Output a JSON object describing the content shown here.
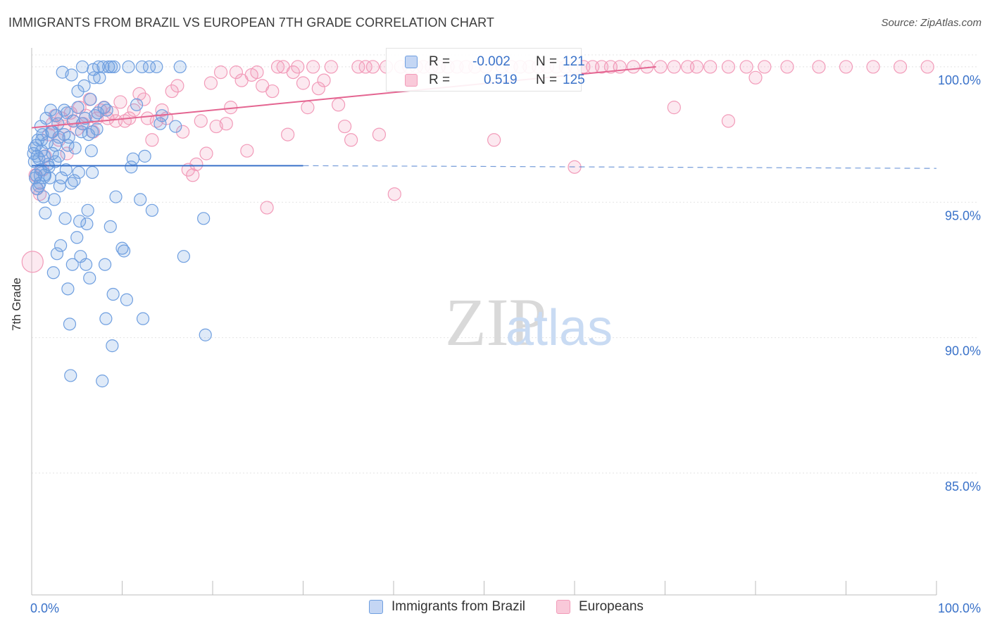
{
  "title": "IMMIGRANTS FROM BRAZIL VS EUROPEAN 7TH GRADE CORRELATION CHART",
  "source": "Source: ZipAtlas.com",
  "watermark": {
    "zip": "ZIP",
    "atlas": "atlas"
  },
  "legend_top": {
    "row1": {
      "r_label": "R =",
      "r_value": "-0.002",
      "n_label": "N =",
      "n_value": "121"
    },
    "row2": {
      "r_label": "R =",
      "r_value": "0.519",
      "n_label": "N =",
      "n_value": "125"
    }
  },
  "legend_bottom": {
    "series1": "Immigrants from Brazil",
    "series2": "Europeans"
  },
  "colors": {
    "blue": "#6f9fe0",
    "blue_line": "#3a72c9",
    "pink": "#f29bb9",
    "pink_line": "#e46591",
    "axis_text": "#3a72c9"
  },
  "chart_data": {
    "type": "scatter",
    "title": "IMMIGRANTS FROM BRAZIL VS EUROPEAN 7TH GRADE CORRELATION CHART",
    "xlabel": "",
    "ylabel": "7th Grade",
    "xlim": [
      0,
      100
    ],
    "ylim": [
      80.5,
      100.7
    ],
    "x_tick_labels": [
      "0.0%",
      "100.0%"
    ],
    "y_ticks": [
      85,
      90,
      95,
      100
    ],
    "y_tick_labels": [
      "85.0%",
      "90.0%",
      "95.0%",
      "100.0%"
    ],
    "grid": true,
    "series": [
      {
        "name": "Immigrants from Brazil",
        "color": "#6f9fe0",
        "R": -0.002,
        "N": 121,
        "trend": {
          "x": [
            0,
            30
          ],
          "y": [
            96.35,
            96.35
          ],
          "dashed_to_x": 100,
          "dashed_y": 96.25
        },
        "points": [
          [
            0.2,
            96.8
          ],
          [
            0.3,
            96.5
          ],
          [
            0.4,
            95.9
          ],
          [
            0.5,
            97.1
          ],
          [
            0.5,
            96.0
          ],
          [
            0.6,
            95.5
          ],
          [
            0.7,
            97.3
          ],
          [
            0.8,
            96.6
          ],
          [
            0.9,
            95.7
          ],
          [
            1.0,
            97.8
          ],
          [
            1.0,
            96.2
          ],
          [
            1.1,
            96.9
          ],
          [
            1.2,
            97.5
          ],
          [
            1.3,
            95.2
          ],
          [
            1.4,
            96.0
          ],
          [
            1.5,
            94.6
          ],
          [
            1.6,
            98.1
          ],
          [
            1.7,
            97.2
          ],
          [
            1.8,
            96.4
          ],
          [
            2.0,
            95.9
          ],
          [
            2.1,
            98.4
          ],
          [
            2.2,
            97.6
          ],
          [
            2.3,
            96.8
          ],
          [
            2.4,
            92.4
          ],
          [
            2.5,
            95.1
          ],
          [
            2.6,
            97.1
          ],
          [
            2.7,
            98.2
          ],
          [
            2.8,
            93.1
          ],
          [
            2.9,
            97.9
          ],
          [
            3.0,
            96.7
          ],
          [
            3.1,
            95.6
          ],
          [
            3.2,
            93.4
          ],
          [
            3.4,
            99.8
          ],
          [
            3.6,
            97.5
          ],
          [
            3.7,
            94.4
          ],
          [
            3.8,
            96.2
          ],
          [
            3.9,
            98.3
          ],
          [
            4.0,
            91.8
          ],
          [
            4.1,
            97.4
          ],
          [
            4.2,
            90.5
          ],
          [
            4.3,
            88.6
          ],
          [
            4.4,
            99.7
          ],
          [
            4.5,
            92.7
          ],
          [
            4.6,
            98.0
          ],
          [
            4.7,
            95.8
          ],
          [
            4.8,
            97.0
          ],
          [
            5.0,
            93.7
          ],
          [
            5.1,
            99.1
          ],
          [
            5.2,
            96.1
          ],
          [
            5.3,
            94.3
          ],
          [
            5.4,
            93.0
          ],
          [
            5.5,
            97.6
          ],
          [
            5.6,
            100.0
          ],
          [
            5.8,
            99.3
          ],
          [
            5.9,
            98.1
          ],
          [
            6.0,
            92.7
          ],
          [
            6.1,
            94.2
          ],
          [
            6.2,
            94.7
          ],
          [
            6.3,
            97.5
          ],
          [
            6.4,
            92.2
          ],
          [
            6.5,
            98.8
          ],
          [
            6.6,
            96.9
          ],
          [
            6.7,
            96.1
          ],
          [
            6.8,
            99.9
          ],
          [
            6.9,
            99.6
          ],
          [
            7.0,
            98.2
          ],
          [
            7.2,
            97.7
          ],
          [
            7.4,
            100.0
          ],
          [
            7.5,
            99.6
          ],
          [
            7.8,
            88.4
          ],
          [
            7.9,
            100.0
          ],
          [
            8.1,
            92.7
          ],
          [
            8.2,
            90.7
          ],
          [
            8.3,
            98.4
          ],
          [
            8.5,
            100.0
          ],
          [
            8.7,
            94.1
          ],
          [
            8.8,
            100.0
          ],
          [
            8.9,
            89.7
          ],
          [
            9.0,
            91.6
          ],
          [
            9.1,
            100.0
          ],
          [
            9.3,
            95.2
          ],
          [
            10.0,
            93.3
          ],
          [
            10.2,
            93.2
          ],
          [
            10.5,
            91.4
          ],
          [
            10.7,
            100.0
          ],
          [
            11.0,
            96.3
          ],
          [
            11.2,
            96.6
          ],
          [
            11.6,
            98.6
          ],
          [
            12.0,
            95.1
          ],
          [
            12.2,
            100.0
          ],
          [
            12.3,
            90.7
          ],
          [
            12.5,
            96.7
          ],
          [
            13.0,
            100.0
          ],
          [
            13.3,
            94.7
          ],
          [
            13.8,
            100.0
          ],
          [
            14.2,
            97.9
          ],
          [
            14.4,
            98.2
          ],
          [
            15.9,
            97.8
          ],
          [
            16.4,
            100.0
          ],
          [
            16.8,
            93.0
          ],
          [
            19.2,
            90.1
          ],
          [
            19.0,
            94.4
          ],
          [
            0.3,
            97.0
          ],
          [
            0.6,
            96.7
          ],
          [
            0.8,
            95.6
          ],
          [
            1.1,
            97.3
          ],
          [
            1.4,
            96.7
          ],
          [
            1.9,
            96.3
          ],
          [
            2.3,
            97.6
          ],
          [
            2.6,
            96.5
          ],
          [
            3.0,
            97.4
          ],
          [
            3.3,
            95.9
          ],
          [
            3.6,
            98.4
          ],
          [
            4.0,
            97.1
          ],
          [
            4.4,
            95.7
          ],
          [
            5.1,
            98.5
          ],
          [
            5.6,
            97.9
          ],
          [
            6.7,
            97.6
          ],
          [
            7.3,
            98.3
          ],
          [
            8.0,
            98.5
          ],
          [
            1.2,
            96.0
          ]
        ]
      },
      {
        "name": "Europeans",
        "color": "#f29bb9",
        "R": 0.519,
        "N": 125,
        "trend": {
          "x": [
            0,
            69
          ],
          "y": [
            97.75,
            100.0
          ]
        },
        "points": [
          [
            0.1,
            92.8
          ],
          [
            0.4,
            96.0
          ],
          [
            0.6,
            95.5
          ],
          [
            0.9,
            95.3
          ],
          [
            1.2,
            96.2
          ],
          [
            1.5,
            96.7
          ],
          [
            1.9,
            97.5
          ],
          [
            2.3,
            97.9
          ],
          [
            2.6,
            98.2
          ],
          [
            3.0,
            97.3
          ],
          [
            3.3,
            98.1
          ],
          [
            3.6,
            97.8
          ],
          [
            3.9,
            96.8
          ],
          [
            4.3,
            98.3
          ],
          [
            4.6,
            98.0
          ],
          [
            5.0,
            97.7
          ],
          [
            5.3,
            98.5
          ],
          [
            5.7,
            97.9
          ],
          [
            6.0,
            98.2
          ],
          [
            6.4,
            98.8
          ],
          [
            6.8,
            97.6
          ],
          [
            7.2,
            98.1
          ],
          [
            7.6,
            98.4
          ],
          [
            8.0,
            98.5
          ],
          [
            8.4,
            98.1
          ],
          [
            8.9,
            98.3
          ],
          [
            9.3,
            98.0
          ],
          [
            9.8,
            98.7
          ],
          [
            10.3,
            98.0
          ],
          [
            10.8,
            98.1
          ],
          [
            11.3,
            98.4
          ],
          [
            11.9,
            99.0
          ],
          [
            12.4,
            98.8
          ],
          [
            12.8,
            98.1
          ],
          [
            13.3,
            97.3
          ],
          [
            13.8,
            98.0
          ],
          [
            14.4,
            98.4
          ],
          [
            14.9,
            98.1
          ],
          [
            15.5,
            99.1
          ],
          [
            16.1,
            99.3
          ],
          [
            16.7,
            97.6
          ],
          [
            17.3,
            96.2
          ],
          [
            17.8,
            96.0
          ],
          [
            18.2,
            96.4
          ],
          [
            18.7,
            98.0
          ],
          [
            19.3,
            96.8
          ],
          [
            19.8,
            99.4
          ],
          [
            20.4,
            97.8
          ],
          [
            20.9,
            99.8
          ],
          [
            21.5,
            97.9
          ],
          [
            22.0,
            98.5
          ],
          [
            22.6,
            99.8
          ],
          [
            23.2,
            99.5
          ],
          [
            23.8,
            96.9
          ],
          [
            24.3,
            99.7
          ],
          [
            24.9,
            99.8
          ],
          [
            25.5,
            99.3
          ],
          [
            26.0,
            94.8
          ],
          [
            26.6,
            99.1
          ],
          [
            27.2,
            100.0
          ],
          [
            27.8,
            100.0
          ],
          [
            28.3,
            97.5
          ],
          [
            28.9,
            99.8
          ],
          [
            29.4,
            100.0
          ],
          [
            30.0,
            99.4
          ],
          [
            30.5,
            98.5
          ],
          [
            31.1,
            100.0
          ],
          [
            31.7,
            99.2
          ],
          [
            32.3,
            99.5
          ],
          [
            33.1,
            100.0
          ],
          [
            33.9,
            98.6
          ],
          [
            34.6,
            97.8
          ],
          [
            35.3,
            97.3
          ],
          [
            36.1,
            100.0
          ],
          [
            36.9,
            100.0
          ],
          [
            37.7,
            100.0
          ],
          [
            38.4,
            97.5
          ],
          [
            39.2,
            100.0
          ],
          [
            40.1,
            95.3
          ],
          [
            40.8,
            100.0
          ],
          [
            41.7,
            100.0
          ],
          [
            42.5,
            100.0
          ],
          [
            43.3,
            100.0
          ],
          [
            44.2,
            100.0
          ],
          [
            45.0,
            100.0
          ],
          [
            46.0,
            100.0
          ],
          [
            47.0,
            100.0
          ],
          [
            48.0,
            100.0
          ],
          [
            49.0,
            100.0
          ],
          [
            50.2,
            100.0
          ],
          [
            51.1,
            97.3
          ],
          [
            52.0,
            100.0
          ],
          [
            53.0,
            100.0
          ],
          [
            54.0,
            100.0
          ],
          [
            55.0,
            100.0
          ],
          [
            56.0,
            100.0
          ],
          [
            57.0,
            100.0
          ],
          [
            58.0,
            100.0
          ],
          [
            59.0,
            100.0
          ],
          [
            60.0,
            100.0
          ],
          [
            61.0,
            100.0
          ],
          [
            62.0,
            100.0
          ],
          [
            63.0,
            100.0
          ],
          [
            64.0,
            100.0
          ],
          [
            65.0,
            100.0
          ],
          [
            66.5,
            100.0
          ],
          [
            68.0,
            100.0
          ],
          [
            69.5,
            100.0
          ],
          [
            71.0,
            100.0
          ],
          [
            72.5,
            100.0
          ],
          [
            73.5,
            100.0
          ],
          [
            75.0,
            100.0
          ],
          [
            77.0,
            100.0
          ],
          [
            79.0,
            100.0
          ],
          [
            81.0,
            100.0
          ],
          [
            83.5,
            100.0
          ],
          [
            87.0,
            100.0
          ],
          [
            90.0,
            100.0
          ],
          [
            93.0,
            100.0
          ],
          [
            96.0,
            100.0
          ],
          [
            99.0,
            100.0
          ],
          [
            60.0,
            96.3
          ],
          [
            71.0,
            98.5
          ],
          [
            77.0,
            98.0
          ],
          [
            80.0,
            99.6
          ]
        ]
      }
    ]
  }
}
